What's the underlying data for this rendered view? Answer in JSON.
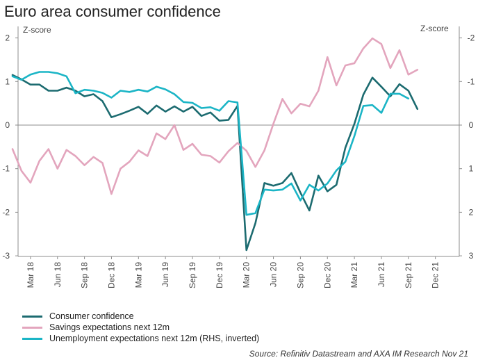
{
  "chart_data": {
    "type": "line",
    "title": "Euro area consumer confidence",
    "left_axis": {
      "label": "Z-score",
      "ticks": [
        "2",
        "1",
        "0",
        "-1",
        "-2",
        "-3"
      ],
      "range": [
        -3,
        2.3
      ]
    },
    "right_axis": {
      "label": "Z-score",
      "ticks": [
        "-2",
        "-1",
        "0",
        "1",
        "2",
        "3"
      ],
      "range_inverted": [
        -2.3,
        3
      ]
    },
    "x_labels": [
      "Mar 18",
      "Jun 18",
      "Sep 18",
      "Dec 18",
      "Mar 19",
      "Jun 19",
      "Sep 19",
      "Dec 19",
      "Mar 20",
      "Jun 20",
      "Sep 20",
      "Dec 20",
      "Mar 21",
      "Jun 21",
      "Sep 21",
      "Dec 21"
    ],
    "x_start": "2018-01",
    "grid": false,
    "legend_position": "bottom-left",
    "series": [
      {
        "name": "Consumer confidence",
        "color": "#1c6b70",
        "axis": "left",
        "values": [
          1.15,
          1.05,
          0.93,
          0.93,
          0.79,
          0.79,
          0.86,
          0.79,
          0.66,
          0.71,
          0.55,
          0.18,
          0.25,
          0.33,
          0.42,
          0.26,
          0.45,
          0.31,
          0.43,
          0.31,
          0.42,
          0.21,
          0.29,
          0.1,
          0.12,
          0.44,
          -2.87,
          -2.25,
          -1.33,
          -1.39,
          -1.33,
          -1.1,
          -1.55,
          -1.96,
          -1.16,
          -1.52,
          -1.37,
          -0.52,
          0.03,
          0.7,
          1.09,
          0.88,
          0.66,
          0.94,
          0.79,
          0.37
        ]
      },
      {
        "name": "Savings expectations next 12m",
        "color": "#e3a5bd",
        "axis": "left",
        "values": [
          -0.55,
          -1.05,
          -1.32,
          -0.82,
          -0.55,
          -1.0,
          -0.57,
          -0.71,
          -0.92,
          -0.73,
          -0.87,
          -1.58,
          -1.0,
          -0.84,
          -0.58,
          -0.71,
          -0.19,
          -0.32,
          0.0,
          -0.57,
          -0.43,
          -0.68,
          -0.71,
          -0.86,
          -0.6,
          -0.41,
          -0.59,
          -0.96,
          -0.58,
          0.03,
          0.6,
          0.27,
          0.49,
          0.43,
          0.79,
          1.56,
          0.91,
          1.37,
          1.42,
          1.76,
          1.99,
          1.86,
          1.31,
          1.72,
          1.16,
          1.27
        ]
      },
      {
        "name": "Unemployment expectations next 12m (RHS, inverted)",
        "color": "#1bb5c6",
        "axis": "right",
        "values": [
          -1.12,
          -1.04,
          -1.16,
          -1.22,
          -1.22,
          -1.19,
          -1.12,
          -0.73,
          -0.81,
          -0.79,
          -0.74,
          -0.63,
          -0.79,
          -0.76,
          -0.81,
          -0.77,
          -0.88,
          -0.82,
          -0.71,
          -0.53,
          -0.51,
          -0.39,
          -0.41,
          -0.33,
          -0.55,
          -0.52,
          2.06,
          2.02,
          1.48,
          1.5,
          1.48,
          1.34,
          1.73,
          1.37,
          1.5,
          1.34,
          1.04,
          0.84,
          0.25,
          -0.44,
          -0.46,
          -0.28,
          -0.72,
          -0.72,
          -0.61
        ]
      }
    ],
    "source": "Source: Refinitiv Datastream and AXA IM Research Nov 21"
  }
}
